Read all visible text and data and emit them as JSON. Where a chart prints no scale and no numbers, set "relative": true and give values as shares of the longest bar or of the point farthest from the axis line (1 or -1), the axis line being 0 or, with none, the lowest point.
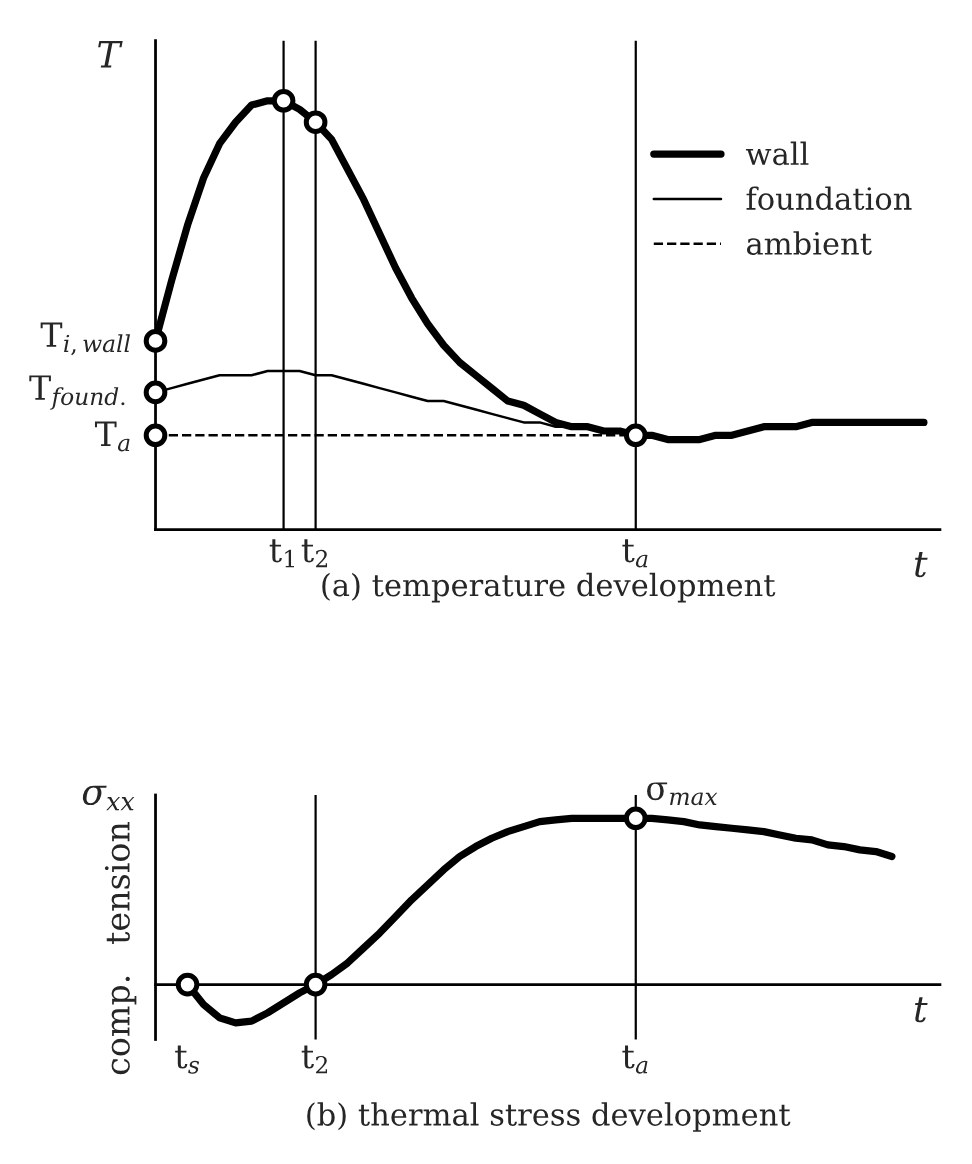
{
  "chart_data": [
    {
      "type": "line",
      "relative": true,
      "title": "(a) temperature development",
      "xlabel": "t",
      "ylabel": "T",
      "legend": "top right",
      "categories": [
        null,
        null,
        null,
        null,
        null,
        null,
        null,
        null,
        "t$_{1}$",
        null,
        "t$_{2}$",
        null,
        null,
        null,
        null,
        null,
        null,
        null,
        null,
        null,
        null,
        null,
        null,
        null,
        null,
        null,
        null,
        null,
        null,
        null,
        "t$_{a}$",
        null,
        null,
        null,
        null,
        null,
        null,
        null,
        null,
        null,
        null,
        null,
        null,
        null,
        null,
        null,
        null,
        null,
        null
      ],
      "series": [
        {
          "name": "wall",
          "color": "#000000",
          "line_style": "solid",
          "values": [
            0.44,
            0.58,
            0.71,
            0.82,
            0.9,
            0.95,
            0.99,
            1.0,
            1.0,
            0.98,
            0.95,
            0.91,
            0.84,
            0.77,
            0.69,
            0.61,
            0.54,
            0.48,
            0.43,
            0.39,
            0.36,
            0.33,
            0.3,
            0.29,
            0.27,
            0.25,
            0.24,
            0.24,
            0.23,
            0.23,
            0.22,
            0.22,
            0.21,
            0.21,
            0.21,
            0.22,
            0.22,
            0.23,
            0.24,
            0.24,
            0.24,
            0.25,
            0.25,
            0.25,
            0.25,
            0.25,
            0.25,
            0.25,
            0.25
          ]
        },
        {
          "name": "foundation",
          "color": "#000000",
          "line_style": "solid",
          "values": [
            0.32,
            0.33,
            0.34,
            0.35,
            0.36,
            0.36,
            0.36,
            0.37,
            0.37,
            0.37,
            0.36,
            0.36,
            0.35,
            0.34,
            0.33,
            0.32,
            0.31,
            0.3,
            0.3,
            0.29,
            0.28,
            0.27,
            0.26,
            0.25,
            0.25,
            0.24,
            0.24,
            0.24,
            0.23,
            0.23,
            0.22,
            null,
            null,
            null,
            null,
            null,
            null,
            null,
            null,
            null,
            null,
            null,
            null,
            null,
            null,
            null,
            null,
            null,
            null
          ]
        },
        {
          "name": "ambient",
          "color": "#000000",
          "line_style": "dashed",
          "values": [
            0.22,
            0.22,
            0.22,
            0.22,
            0.22,
            0.22,
            0.22,
            0.22,
            0.22,
            0.22,
            0.22,
            0.22,
            0.22,
            0.22,
            0.22,
            0.22,
            0.22,
            0.22,
            0.22,
            0.22,
            0.22,
            0.22,
            0.22,
            0.22,
            0.22,
            0.22,
            0.22,
            0.22,
            0.22,
            0.22,
            0.22,
            null,
            null,
            null,
            null,
            null,
            null,
            null,
            null,
            null,
            null,
            null,
            null,
            null,
            null,
            null,
            null,
            null,
            null
          ]
        },
        {
          "type": "scatter",
          "marker": "circle",
          "color": "#000000",
          "values": [
            0.44,
            null,
            null,
            null,
            null,
            null,
            null,
            null,
            1.0,
            null,
            0.95,
            null,
            null,
            null,
            null,
            null,
            null,
            null,
            null,
            null,
            null,
            null,
            null,
            null,
            null,
            null,
            null,
            null,
            null,
            null,
            0.22,
            null,
            null,
            null,
            null,
            null,
            null,
            null,
            null,
            null,
            null,
            null,
            null,
            null,
            null,
            null,
            null,
            null,
            null
          ]
        },
        {
          "type": "scatter",
          "marker": "circle",
          "color": "#000000",
          "values": [
            0.32,
            null,
            null,
            null,
            null,
            null,
            null,
            null,
            null,
            null,
            null,
            null,
            null,
            null,
            null,
            null,
            null,
            null,
            null,
            null,
            null,
            null,
            null,
            null,
            null,
            null,
            null,
            null,
            null,
            null,
            null,
            null,
            null,
            null,
            null,
            null,
            null,
            null,
            null,
            null,
            null,
            null,
            null,
            null,
            null,
            null,
            null,
            null,
            null
          ]
        },
        {
          "type": "scatter",
          "marker": "circle",
          "color": "#000000",
          "values": [
            0.22,
            null,
            null,
            null,
            null,
            null,
            null,
            null,
            null,
            null,
            null,
            null,
            null,
            null,
            null,
            null,
            null,
            null,
            null,
            null,
            null,
            null,
            null,
            null,
            null,
            null,
            null,
            null,
            null,
            null,
            null,
            null,
            null,
            null,
            null,
            null,
            null,
            null,
            null,
            null,
            null,
            null,
            null,
            null,
            null,
            null,
            null,
            null,
            null
          ]
        }
      ],
      "ref_lines": [
        {
          "axis": "x",
          "value": "t$_{1}$"
        },
        {
          "axis": "x",
          "value": "t$_{2}$"
        },
        {
          "axis": "x",
          "value": "t$_{a}$"
        }
      ],
      "annotations": [
        "T$_{i,wall}$",
        "T$_{found.}$",
        "T$_{a}$"
      ]
    },
    {
      "type": "line",
      "relative": true,
      "title": "(b) thermal stress development",
      "xlabel": "t",
      "ylabel": "σ$_{xx}$",
      "categories": [
        null,
        null,
        "t$_{s}$",
        null,
        null,
        null,
        null,
        null,
        null,
        null,
        "t$_{2}$",
        null,
        null,
        null,
        null,
        null,
        null,
        null,
        null,
        null,
        null,
        null,
        null,
        null,
        null,
        null,
        null,
        null,
        null,
        null,
        "t$_{a}$",
        null,
        null,
        null,
        null,
        null,
        null,
        null,
        null,
        null,
        null,
        null,
        null,
        null,
        null,
        null,
        null,
        null,
        null
      ],
      "series": [
        {
          "color": "#000000",
          "line_style": "solid",
          "values": [
            null,
            null,
            0,
            -0.12,
            -0.2,
            -0.23,
            -0.22,
            -0.17,
            -0.11,
            -0.05,
            0,
            0.06,
            0.13,
            0.22,
            0.31,
            0.41,
            0.51,
            0.6,
            0.69,
            0.77,
            0.83,
            0.88,
            0.92,
            0.95,
            0.98,
            0.99,
            1.0,
            1.0,
            1.0,
            1.0,
            1.0,
            1.0,
            0.99,
            0.98,
            0.96,
            0.95,
            0.94,
            0.93,
            0.92,
            0.9,
            0.88,
            0.87,
            0.84,
            0.83,
            0.81,
            0.8,
            0.77,
            null,
            null
          ]
        },
        {
          "type": "scatter",
          "marker": "circle",
          "color": "#000000",
          "values": [
            null,
            null,
            0,
            null,
            null,
            null,
            null,
            null,
            null,
            null,
            0,
            null,
            null,
            null,
            null,
            null,
            null,
            null,
            null,
            null,
            null,
            null,
            null,
            null,
            null,
            null,
            null,
            null,
            null,
            null,
            1.0,
            null,
            null,
            null,
            null,
            null,
            null,
            null,
            null,
            null,
            null,
            null,
            null,
            null,
            null,
            null,
            null,
            null,
            null
          ]
        }
      ],
      "ref_lines": [
        {
          "axis": "x",
          "value": "t$_{2}$"
        },
        {
          "axis": "x",
          "value": "t$_{a}$"
        }
      ],
      "annotations": [
        {
          "text": "σ$_{max}$",
          "x": "t$_{a}$",
          "y": 1.0
        },
        "comp.",
        "tension"
      ]
    }
  ]
}
